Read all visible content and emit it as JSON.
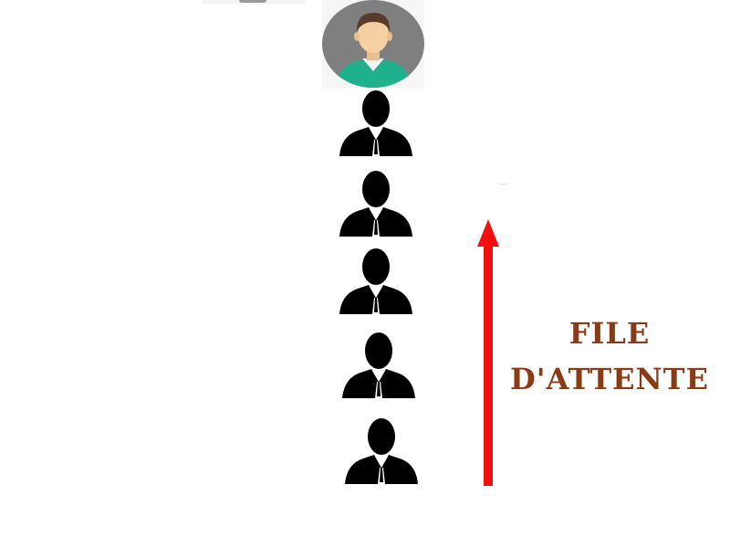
{
  "queue_label": {
    "line1": "FILE",
    "line2": "D'ATTENTE"
  },
  "colors": {
    "arrow": "#f01010",
    "label_text": "#8a3a14",
    "person_silhouette": "#000000",
    "avatar_background": "#7f7f7f",
    "avatar_shirt": "#1fb08e",
    "avatar_skin": "#f5d0a3",
    "avatar_hair": "#5a3a2a"
  },
  "icons": {
    "server": "user-avatar-icon",
    "waiting_person": "businessman-silhouette-icon"
  }
}
